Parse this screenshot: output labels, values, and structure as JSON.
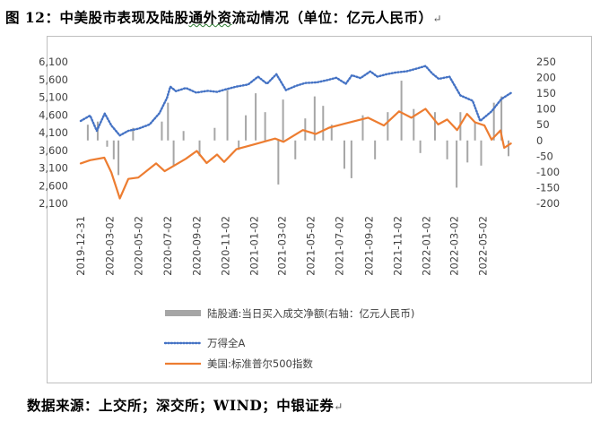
{
  "figure": {
    "title_prefix": "图 12：",
    "title_main": "中美股市表现及陆股",
    "title_wavy": "通外资",
    "title_rest": "流动情况（单位：亿元人民币）",
    "source": "数据来源：上交所；深交所；WIND；中银证券"
  },
  "chart_data": {
    "type": "line",
    "left_axis": {
      "ticks": [
        "6,100",
        "5,600",
        "5,100",
        "4,600",
        "4,100",
        "3,600",
        "3,100",
        "2,600",
        "2,100"
      ],
      "range": [
        2100,
        6100
      ]
    },
    "right_axis": {
      "ticks": [
        "250",
        "200",
        "150",
        "100",
        "50",
        "0",
        "-50",
        "-100",
        "-150",
        "-200"
      ],
      "range": [
        -200,
        250
      ]
    },
    "x_ticks": [
      "2019-12-31",
      "2020-03-02",
      "2020-05-02",
      "2020-07-02",
      "2020-09-02",
      "2020-11-02",
      "2021-01-02",
      "2021-03-02",
      "2021-05-02",
      "2021-07-02",
      "2021-09-02",
      "2021-11-02",
      "2022-01-02",
      "2022-03-02",
      "2022-05-02"
    ],
    "legend": [
      "陆股通:当日买入成交净额(右轴：亿元人民币)",
      "万得全A",
      "美国:标准普尔500指数"
    ],
    "colors": {
      "northbound": "#a6a6a6",
      "wind_a": "#4472c4",
      "sp500": "#ed7d31"
    },
    "series": [
      {
        "name": "万得全A",
        "axis": "left",
        "x": [
          "2019-12-31",
          "2020-01-20",
          "2020-02-03",
          "2020-02-20",
          "2020-03-05",
          "2020-03-23",
          "2020-04-10",
          "2020-05-01",
          "2020-05-25",
          "2020-06-15",
          "2020-07-01",
          "2020-07-08",
          "2020-07-20",
          "2020-08-10",
          "2020-09-01",
          "2020-09-25",
          "2020-10-15",
          "2020-11-02",
          "2020-11-25",
          "2020-12-20",
          "2021-01-10",
          "2021-01-29",
          "2021-02-18",
          "2021-03-10",
          "2021-03-31",
          "2021-04-20",
          "2021-05-15",
          "2021-06-05",
          "2021-06-25",
          "2021-07-15",
          "2021-07-28",
          "2021-08-15",
          "2021-09-05",
          "2021-09-20",
          "2021-10-10",
          "2021-10-30",
          "2021-11-20",
          "2021-12-10",
          "2021-12-31",
          "2022-01-15",
          "2022-01-28",
          "2022-02-20",
          "2022-03-15",
          "2022-04-10",
          "2022-04-26",
          "2022-05-20",
          "2022-06-10",
          "2022-06-30"
        ],
        "values": [
          4430,
          4580,
          4150,
          4640,
          4300,
          4020,
          4150,
          4210,
          4330,
          4650,
          5080,
          5400,
          5270,
          5360,
          5230,
          5280,
          5250,
          5320,
          5400,
          5460,
          5680,
          5480,
          5750,
          5300,
          5420,
          5500,
          5520,
          5580,
          5650,
          5480,
          5720,
          5640,
          5830,
          5680,
          5750,
          5800,
          5830,
          5900,
          5980,
          5760,
          5620,
          5680,
          5150,
          5000,
          4430,
          4700,
          5050,
          5220
        ]
      },
      {
        "name": "美国:标准普尔500指数",
        "axis": "left",
        "x": [
          "2019-12-31",
          "2020-01-20",
          "2020-02-19",
          "2020-03-05",
          "2020-03-23",
          "2020-04-10",
          "2020-05-01",
          "2020-06-08",
          "2020-06-26",
          "2020-08-10",
          "2020-09-02",
          "2020-09-23",
          "2020-10-15",
          "2020-10-30",
          "2020-11-25",
          "2020-12-31",
          "2021-02-15",
          "2021-03-05",
          "2021-04-15",
          "2021-05-12",
          "2021-06-10",
          "2021-07-15",
          "2021-08-31",
          "2021-10-04",
          "2021-11-05",
          "2021-12-01",
          "2021-12-31",
          "2022-01-27",
          "2022-02-15",
          "2022-03-08",
          "2022-03-29",
          "2022-04-15",
          "2022-05-05",
          "2022-05-20",
          "2022-06-08",
          "2022-06-16",
          "2022-06-30"
        ],
        "values": [
          3230,
          3320,
          3390,
          2970,
          2240,
          2790,
          2830,
          3230,
          3010,
          3360,
          3580,
          3240,
          3480,
          3270,
          3630,
          3760,
          3930,
          3840,
          4170,
          4060,
          4240,
          4360,
          4520,
          4300,
          4700,
          4520,
          4770,
          4330,
          4470,
          4170,
          4630,
          4390,
          4300,
          3900,
          4160,
          3670,
          3790
        ]
      },
      {
        "name": "陆股通:当日买入成交净额(右轴：亿元人民币)",
        "axis": "right",
        "type": "bar",
        "x": [
          "2020-01-15",
          "2020-02-05",
          "2020-02-25",
          "2020-03-10",
          "2020-03-20",
          "2020-04-20",
          "2020-06-20",
          "2020-07-03",
          "2020-07-15",
          "2020-08-05",
          "2020-09-08",
          "2020-10-10",
          "2020-11-06",
          "2020-11-30",
          "2020-12-15",
          "2021-01-05",
          "2021-01-25",
          "2021-02-22",
          "2021-03-04",
          "2021-03-30",
          "2021-04-20",
          "2021-05-10",
          "2021-05-28",
          "2021-06-15",
          "2021-07-12",
          "2021-07-27",
          "2021-08-20",
          "2021-09-15",
          "2021-10-12",
          "2021-11-10",
          "2021-12-06",
          "2021-12-20",
          "2022-01-20",
          "2022-02-15",
          "2022-03-07",
          "2022-03-15",
          "2022-03-30",
          "2022-04-15",
          "2022-04-28",
          "2022-05-25",
          "2022-06-10",
          "2022-06-25"
        ],
        "values": [
          50,
          60,
          -20,
          -60,
          -110,
          40,
          60,
          120,
          -80,
          30,
          -50,
          40,
          160,
          -30,
          80,
          150,
          90,
          -140,
          130,
          -60,
          70,
          140,
          110,
          50,
          -90,
          -120,
          80,
          -60,
          90,
          190,
          100,
          -40,
          90,
          -60,
          -150,
          90,
          -70,
          60,
          -80,
          120,
          140,
          -50
        ]
      }
    ]
  }
}
